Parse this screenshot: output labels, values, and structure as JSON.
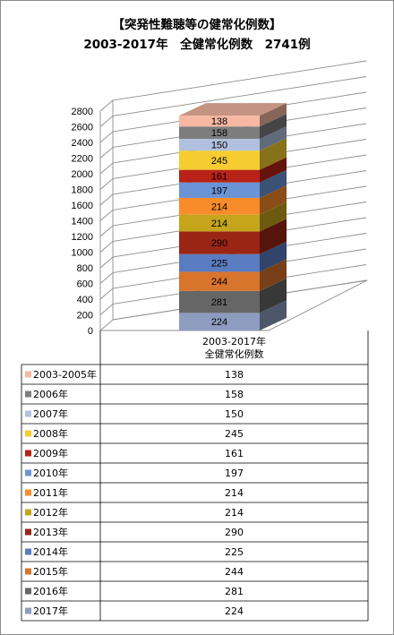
{
  "title_line1": "【突発性難聴等の健常化例数】",
  "title_line2": "2003-2017年　全健常化例数　2741例",
  "chart_data": {
    "type": "bar",
    "stacked": true,
    "three_d": true,
    "title": "【突発性難聴等の健常化例数】 2003-2017年　全健常化例数　2741例",
    "categories": [
      "2003-2017年\n全健常化例数"
    ],
    "category_label_lines": [
      "2003-2017年",
      "全健常化例数"
    ],
    "ylim": [
      0,
      2800
    ],
    "yticks": [
      0,
      200,
      400,
      600,
      800,
      1000,
      1200,
      1400,
      1600,
      1800,
      2000,
      2200,
      2400,
      2600,
      2800
    ],
    "grid": true,
    "legend": "data-table",
    "series": [
      {
        "name": "2017年",
        "values": [
          224
        ],
        "color": "#8e9cc0"
      },
      {
        "name": "2016年",
        "values": [
          281
        ],
        "color": "#666666"
      },
      {
        "name": "2015年",
        "values": [
          244
        ],
        "color": "#d9742c"
      },
      {
        "name": "2014年",
        "values": [
          225
        ],
        "color": "#5a7cc0"
      },
      {
        "name": "2013年",
        "values": [
          290
        ],
        "color": "#9b2515"
      },
      {
        "name": "2012年",
        "values": [
          214
        ],
        "color": "#c5a51c"
      },
      {
        "name": "2011年",
        "values": [
          214
        ],
        "color": "#f98c2a"
      },
      {
        "name": "2010年",
        "values": [
          197
        ],
        "color": "#6b94d6"
      },
      {
        "name": "2009年",
        "values": [
          161
        ],
        "color": "#b82218"
      },
      {
        "name": "2008年",
        "values": [
          245
        ],
        "color": "#f5cd30"
      },
      {
        "name": "2007年",
        "values": [
          150
        ],
        "color": "#b0c0df"
      },
      {
        "name": "2006年",
        "values": [
          158
        ],
        "color": "#7d7d7d"
      },
      {
        "name": "2003-2005年",
        "values": [
          138
        ],
        "color": "#f6b8a2"
      }
    ]
  }
}
